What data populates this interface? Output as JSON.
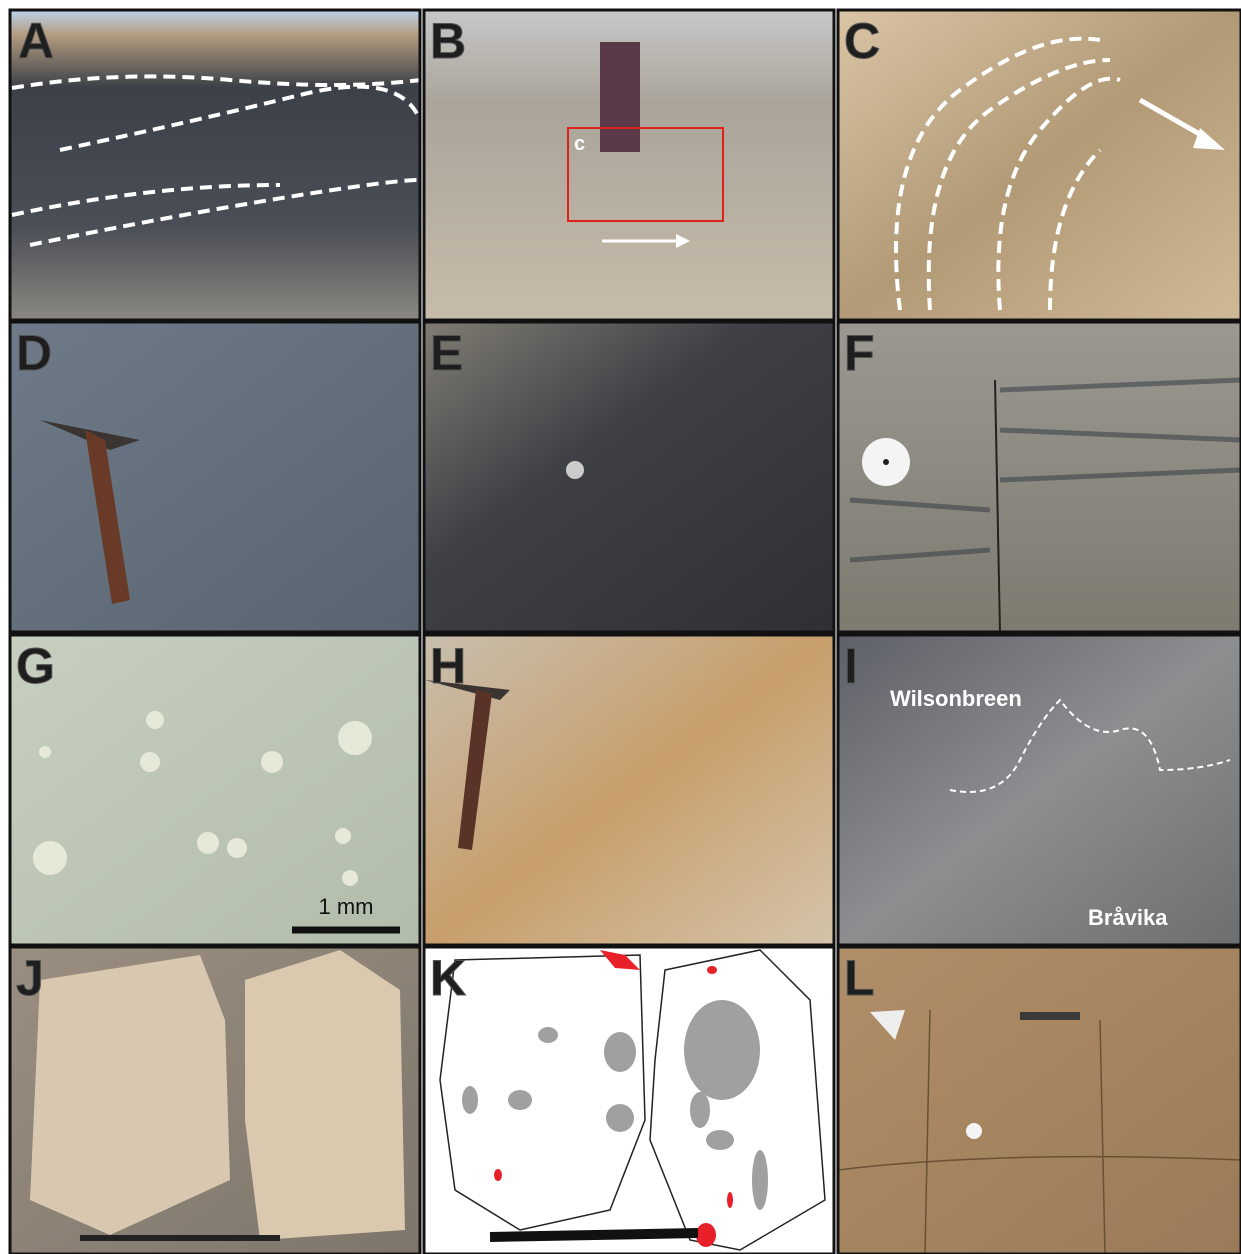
{
  "panels": [
    {
      "label": "A"
    },
    {
      "label": "B",
      "box_label": "c"
    },
    {
      "label": "C"
    },
    {
      "label": "D"
    },
    {
      "label": "E"
    },
    {
      "label": "F"
    },
    {
      "label": "G",
      "scale_label": "1 mm"
    },
    {
      "label": "H"
    },
    {
      "label": "I",
      "upper_unit": "Wilsonbreen",
      "lower_unit": "Bråvika"
    },
    {
      "label": "J"
    },
    {
      "label": "K"
    },
    {
      "label": "L"
    }
  ]
}
